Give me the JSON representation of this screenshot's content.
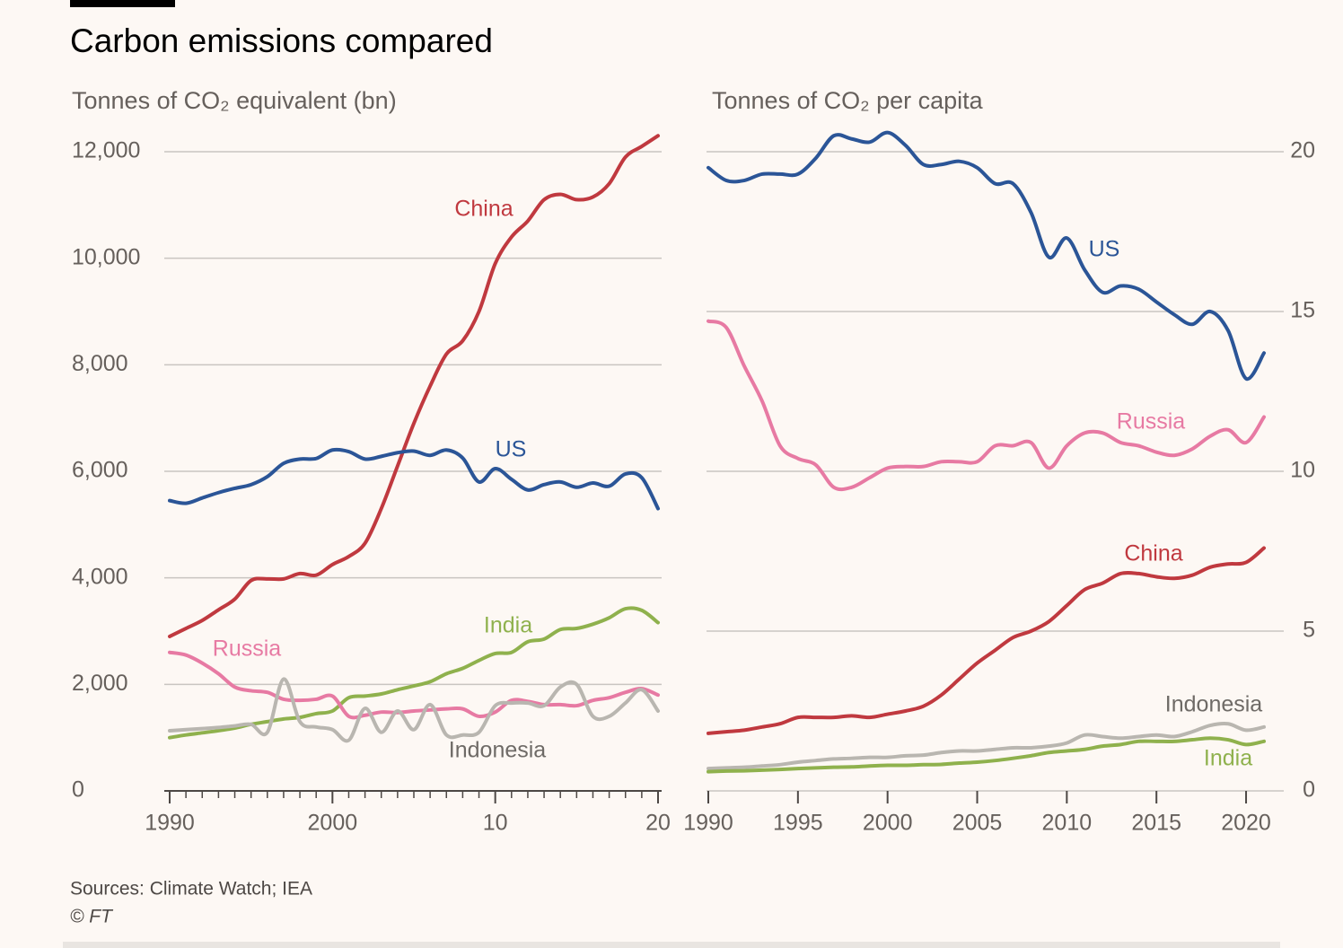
{
  "title": "Carbon emissions compared",
  "source": "Sources: Climate Watch; IEA",
  "credit": "© FT",
  "chart_data": [
    {
      "type": "line",
      "subtitle": "Tonnes of CO₂ equivalent (bn)",
      "x": [
        1990,
        1991,
        1992,
        1993,
        1994,
        1995,
        1996,
        1997,
        1998,
        1999,
        2000,
        2001,
        2002,
        2003,
        2004,
        2005,
        2006,
        2007,
        2008,
        2009,
        2010,
        2011,
        2012,
        2013,
        2014,
        2015,
        2016,
        2017,
        2018,
        2019,
        2020
      ],
      "xlim": [
        1990,
        2020
      ],
      "xticks": [
        1990,
        2000,
        {
          "value": 2010,
          "label": "10"
        },
        {
          "value": 2020,
          "label": "20"
        }
      ],
      "xminorticks": [
        1991,
        1992,
        1993,
        1994,
        1995,
        1996,
        1997,
        1998,
        1999,
        2001,
        2002,
        2003,
        2004,
        2005,
        2006,
        2007,
        2008,
        2009,
        2011,
        2012,
        2013,
        2014,
        2015,
        2016,
        2017,
        2018,
        2019
      ],
      "ylim": [
        0,
        12000
      ],
      "yticks": [
        0,
        {
          "value": 2000,
          "label": "2,000"
        },
        {
          "value": 4000,
          "label": "4,000"
        },
        {
          "value": 6000,
          "label": "6,000"
        },
        {
          "value": 8000,
          "label": "8,000"
        },
        {
          "value": 10000,
          "label": "10,000"
        },
        {
          "value": 12000,
          "label": "12,000"
        }
      ],
      "grid": true,
      "series": [
        {
          "name": "China",
          "color": "#c0393f",
          "values": [
            2900,
            3050,
            3200,
            3400,
            3600,
            3950,
            3980,
            3980,
            4080,
            4050,
            4250,
            4400,
            4650,
            5300,
            6100,
            6900,
            7600,
            8200,
            8450,
            9000,
            9900,
            10400,
            10700,
            11100,
            11200,
            11100,
            11150,
            11400,
            11900,
            12100,
            12300
          ]
        },
        {
          "name": "US",
          "color": "#2b5597",
          "values": [
            5450,
            5400,
            5500,
            5600,
            5680,
            5750,
            5900,
            6150,
            6230,
            6240,
            6400,
            6370,
            6230,
            6280,
            6350,
            6380,
            6300,
            6400,
            6250,
            5800,
            6050,
            5850,
            5650,
            5750,
            5800,
            5700,
            5780,
            5720,
            5950,
            5880,
            5300
          ]
        },
        {
          "name": "India",
          "color": "#8fb14d",
          "values": [
            1000,
            1050,
            1090,
            1130,
            1180,
            1250,
            1300,
            1350,
            1380,
            1450,
            1500,
            1750,
            1780,
            1820,
            1900,
            1970,
            2050,
            2200,
            2300,
            2450,
            2580,
            2600,
            2800,
            2850,
            3030,
            3050,
            3130,
            3250,
            3420,
            3390,
            3160
          ]
        },
        {
          "name": "Russia",
          "color": "#e77aa3",
          "values": [
            2600,
            2550,
            2400,
            2200,
            1950,
            1880,
            1850,
            1720,
            1700,
            1720,
            1780,
            1400,
            1420,
            1480,
            1470,
            1500,
            1520,
            1540,
            1540,
            1400,
            1480,
            1700,
            1680,
            1620,
            1620,
            1600,
            1700,
            1750,
            1850,
            1920,
            1800
          ]
        },
        {
          "name": "Indonesia",
          "color": "#b9b6b0",
          "values": [
            1130,
            1150,
            1170,
            1190,
            1220,
            1250,
            1100,
            2100,
            1300,
            1200,
            1150,
            950,
            1550,
            1100,
            1500,
            1150,
            1620,
            1050,
            1050,
            1100,
            1600,
            1650,
            1650,
            1600,
            1950,
            2000,
            1400,
            1400,
            1650,
            1900,
            1500
          ]
        }
      ]
    },
    {
      "type": "line",
      "subtitle": "Tonnes of CO₂ per capita",
      "x": [
        1990,
        1991,
        1992,
        1993,
        1994,
        1995,
        1996,
        1997,
        1998,
        1999,
        2000,
        2001,
        2002,
        2003,
        2004,
        2005,
        2006,
        2007,
        2008,
        2009,
        2010,
        2011,
        2012,
        2013,
        2014,
        2015,
        2016,
        2017,
        2018,
        2019,
        2020,
        2021
      ],
      "xlim": [
        1990,
        2021
      ],
      "xticks": [
        1990,
        1995,
        2000,
        2005,
        2010,
        2015,
        2020
      ],
      "ylim": [
        0,
        20
      ],
      "yticks": [
        0,
        5,
        10,
        15,
        20
      ],
      "grid": true,
      "series": [
        {
          "name": "US",
          "color": "#2b5597",
          "values": [
            19.5,
            19.1,
            19.1,
            19.3,
            19.3,
            19.3,
            19.8,
            20.5,
            20.4,
            20.3,
            20.6,
            20.2,
            19.6,
            19.6,
            19.7,
            19.5,
            19.0,
            19.0,
            18.1,
            16.7,
            17.3,
            16.3,
            15.6,
            15.8,
            15.7,
            15.3,
            14.9,
            14.6,
            15.0,
            14.4,
            12.9,
            13.7
          ]
        },
        {
          "name": "Russia",
          "color": "#e77aa3",
          "values": [
            14.7,
            14.5,
            13.3,
            12.2,
            10.8,
            10.4,
            10.2,
            9.5,
            9.5,
            9.8,
            10.1,
            10.15,
            10.15,
            10.3,
            10.3,
            10.3,
            10.8,
            10.8,
            10.9,
            10.1,
            10.8,
            11.2,
            11.2,
            10.9,
            10.8,
            10.6,
            10.5,
            10.7,
            11.1,
            11.3,
            10.9,
            11.7
          ]
        },
        {
          "name": "China",
          "color": "#c0393f",
          "values": [
            1.8,
            1.85,
            1.9,
            2.0,
            2.1,
            2.3,
            2.3,
            2.3,
            2.35,
            2.3,
            2.4,
            2.5,
            2.65,
            3.0,
            3.5,
            4.0,
            4.4,
            4.8,
            5.0,
            5.3,
            5.8,
            6.3,
            6.5,
            6.8,
            6.8,
            6.7,
            6.65,
            6.75,
            7.0,
            7.1,
            7.15,
            7.6
          ]
        },
        {
          "name": "Indonesia",
          "color": "#b9b6b0",
          "values": [
            0.7,
            0.72,
            0.74,
            0.78,
            0.82,
            0.9,
            0.95,
            1.0,
            1.02,
            1.05,
            1.05,
            1.1,
            1.12,
            1.2,
            1.25,
            1.25,
            1.3,
            1.35,
            1.35,
            1.4,
            1.5,
            1.75,
            1.7,
            1.65,
            1.7,
            1.75,
            1.7,
            1.85,
            2.05,
            2.1,
            1.9,
            2.0
          ]
        },
        {
          "name": "India",
          "color": "#8fb14d",
          "values": [
            0.6,
            0.62,
            0.63,
            0.65,
            0.67,
            0.7,
            0.72,
            0.74,
            0.75,
            0.78,
            0.8,
            0.8,
            0.82,
            0.83,
            0.87,
            0.9,
            0.95,
            1.02,
            1.1,
            1.2,
            1.25,
            1.3,
            1.4,
            1.45,
            1.55,
            1.55,
            1.55,
            1.6,
            1.65,
            1.6,
            1.45,
            1.55
          ]
        }
      ]
    }
  ]
}
